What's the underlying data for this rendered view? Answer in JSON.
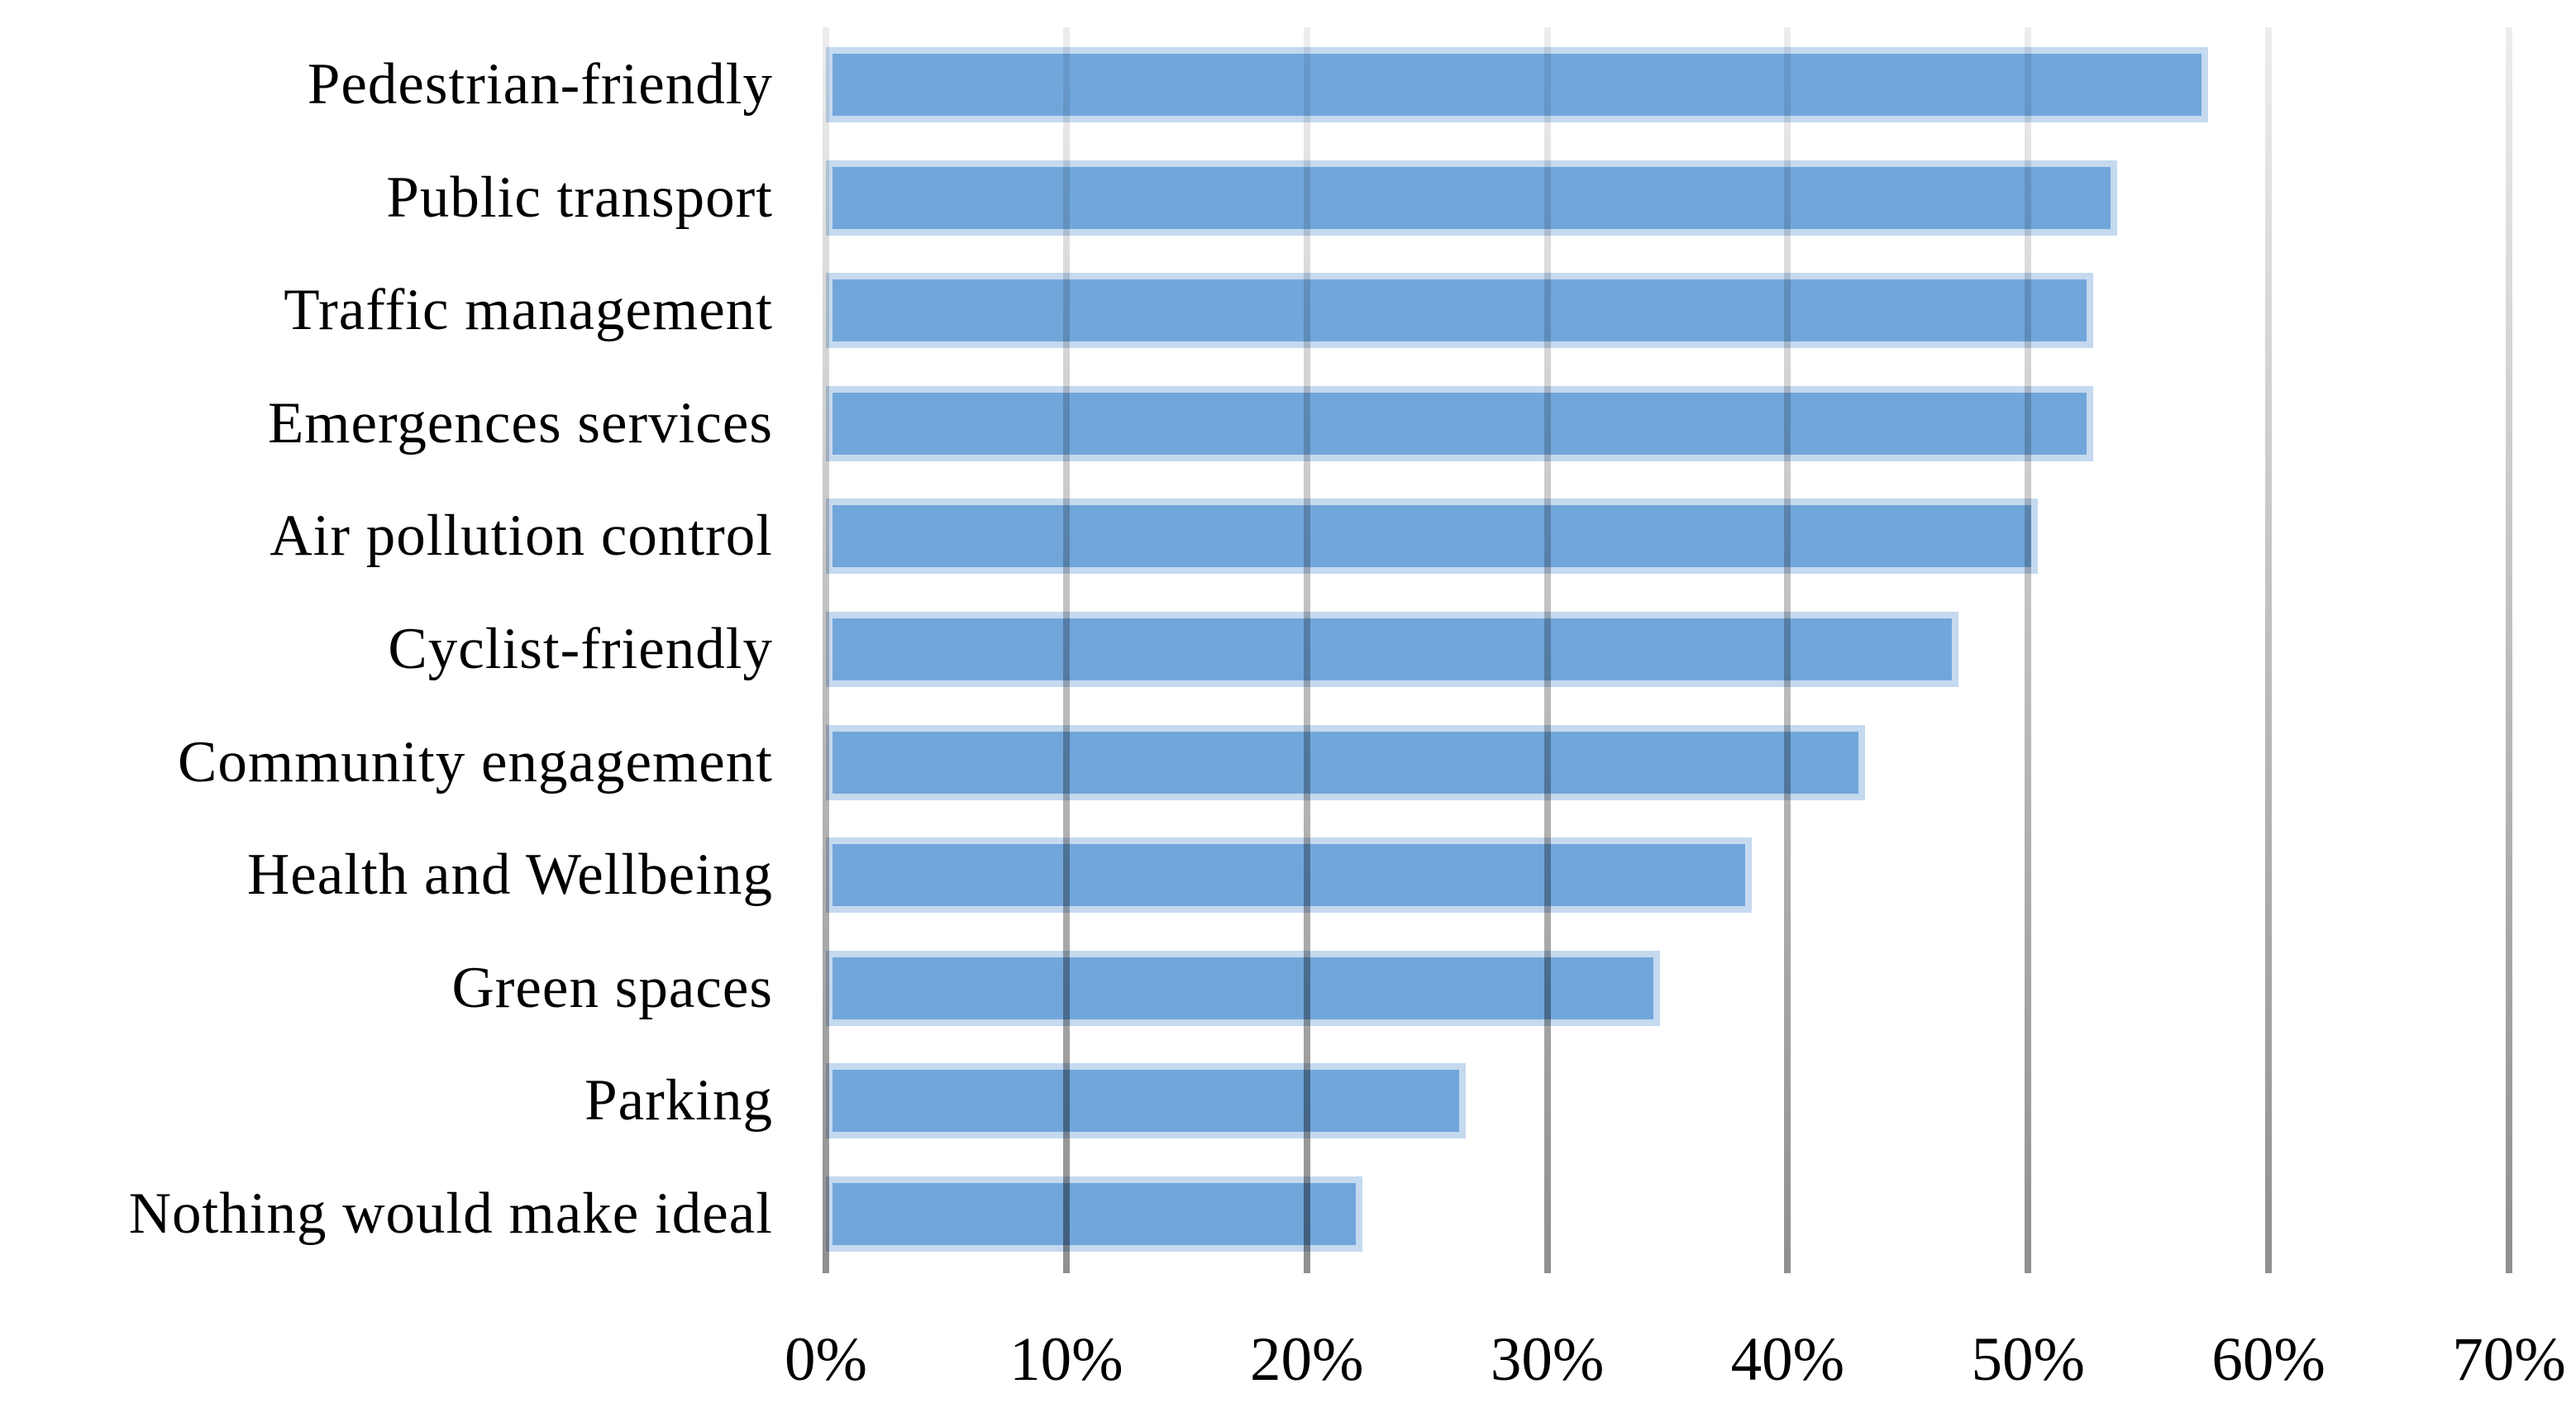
{
  "chart_data": {
    "type": "bar",
    "orientation": "horizontal",
    "title": "",
    "xlabel": "",
    "ylabel": "",
    "units": "%",
    "categories": [
      "Pedestrian-friendly",
      "Public transport",
      "Traffic management",
      "Emergences services",
      "Air pollution control",
      "Cyclist-friendly",
      "Community engagement",
      "Health and Wellbeing",
      "Green spaces",
      "Parking",
      "Nothing would make ideal"
    ],
    "values": [
      57.5,
      53.7,
      52.7,
      52.7,
      50.4,
      47.1,
      43.2,
      38.5,
      34.7,
      26.6,
      22.3
    ],
    "xlim": [
      0,
      70
    ],
    "x_ticks": [
      "0%",
      "10%",
      "20%",
      "30%",
      "40%",
      "50%",
      "60%",
      "70%"
    ],
    "grid": true,
    "gridline_style": "vertical, gradient light gray at top to darker gray at bottom",
    "legend": false,
    "bar_color": "#71A6DB",
    "bar_border_color": "#C5D9EF",
    "background_color": "#FFFFFF",
    "text_color": "#000000"
  }
}
